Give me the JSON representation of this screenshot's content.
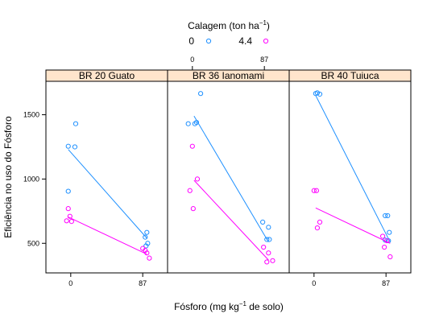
{
  "chart_data": {
    "type": "scatter",
    "layout": "three lattice panels side by side with fitted regression lines",
    "legend": {
      "title": "Calagem (ton ha",
      "title_sup": "−1",
      "title_close": ")",
      "placement": "top-center",
      "entries": [
        {
          "label": "0",
          "color": "#1E90FF"
        },
        {
          "label": "4.4",
          "color": "#FF00FF"
        }
      ]
    },
    "xlabel": "Fósforo (mg kg",
    "xlabel_sup": "−1",
    "xlabel_rest": " de solo)",
    "ylabel": "Eficiência no uso do Fósforo",
    "ylim": [
      270,
      1760
    ],
    "xlim": [
      -30,
      117
    ],
    "x_ticks": [
      0,
      87
    ],
    "x_tick_labels": [
      "0",
      "87"
    ],
    "y_ticks": [
      500,
      1000,
      1500
    ],
    "y_tick_labels": [
      "500",
      "1000",
      "1500"
    ],
    "strip_color": "#FFE5CC",
    "panels": [
      {
        "name": "BR 20 Guato",
        "series": [
          {
            "name": "0",
            "color": "#1E90FF",
            "points": [
              [
                -3,
                1255
              ],
              [
                6,
                1430
              ],
              [
                5,
                1250
              ],
              [
                -3,
                905
              ],
              [
                90,
                548
              ],
              [
                92,
                585
              ],
              [
                93,
                500
              ],
              [
                91,
                480
              ]
            ],
            "fit": [
              [
                -3,
                1230
              ],
              [
                92,
                540
              ]
            ]
          },
          {
            "name": "4.4",
            "color": "#FF00FF",
            "points": [
              [
                -3,
                770
              ],
              [
                -1,
                710
              ],
              [
                -5,
                675
              ],
              [
                1,
                670
              ],
              [
                87,
                460
              ],
              [
                90,
                445
              ],
              [
                92,
                425
              ],
              [
                95,
                385
              ]
            ],
            "fit": [
              [
                -3,
                705
              ],
              [
                92,
                415
              ]
            ]
          }
        ]
      },
      {
        "name": "BR 36 Ianomami",
        "series": [
          {
            "name": "0",
            "color": "#1E90FF",
            "points": [
              [
                10,
                1665
              ],
              [
                -5,
                1430
              ],
              [
                3,
                1430
              ],
              [
                5,
                1440
              ],
              [
                85,
                665
              ],
              [
                90,
                530
              ],
              [
                93,
                530
              ],
              [
                92,
                625
              ]
            ],
            "fit": [
              [
                2,
                1490
              ],
              [
                92,
                510
              ]
            ]
          },
          {
            "name": "4.4",
            "color": "#FF00FF",
            "points": [
              [
                0,
                1255
              ],
              [
                6,
                1000
              ],
              [
                -3,
                910
              ],
              [
                1,
                770
              ],
              [
                86,
                470
              ],
              [
                92,
                425
              ],
              [
                90,
                355
              ],
              [
                97,
                365
              ]
            ],
            "fit": [
              [
                2,
                990
              ],
              [
                92,
                370
              ]
            ]
          }
        ]
      },
      {
        "name": "BR 40 Tuiuca",
        "series": [
          {
            "name": "0",
            "color": "#1E90FF",
            "points": [
              [
                2,
                1665
              ],
              [
                4,
                1670
              ],
              [
                7,
                1660
              ],
              [
                86,
                715
              ],
              [
                89,
                715
              ],
              [
                91,
                585
              ],
              [
                90,
                520
              ],
              [
                86,
                525
              ]
            ],
            "fit": [
              [
                2,
                1650
              ],
              [
                92,
                510
              ]
            ]
          },
          {
            "name": "4.4",
            "color": "#FF00FF",
            "points": [
              [
                0,
                910
              ],
              [
                3,
                910
              ],
              [
                7,
                665
              ],
              [
                4,
                620
              ],
              [
                83,
                555
              ],
              [
                85,
                470
              ],
              [
                88,
                520
              ],
              [
                92,
                395
              ]
            ],
            "fit": [
              [
                2,
                775
              ],
              [
                92,
                500
              ]
            ]
          }
        ]
      }
    ]
  }
}
